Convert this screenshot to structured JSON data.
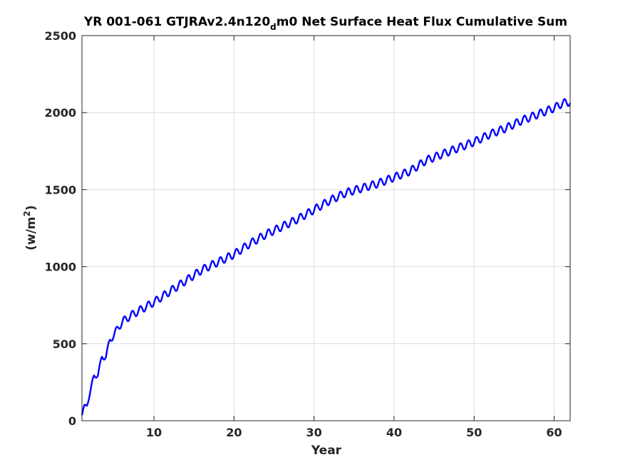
{
  "chart_data": {
    "type": "line",
    "title_main": "YR 001-061 GTJRAv2.4n120",
    "title_subscript": "d",
    "title_rest": "m0 Net Surface Heat Flux  Cumulative Sum",
    "xlabel": "Year",
    "ylabel_base": "(w/m",
    "ylabel_sup": "2",
    "ylabel_end": ")",
    "xlim": [
      1,
      62
    ],
    "ylim": [
      0,
      2500
    ],
    "xticks": [
      10,
      20,
      30,
      40,
      50,
      60
    ],
    "yticks": [
      0,
      500,
      1000,
      1500,
      2000,
      2500
    ],
    "grid": true,
    "line_color": "#0000ff",
    "seasonal_cycle": "annual oscillation, amplitude ~25 w/m2 after year 6",
    "series": [
      {
        "x": [
          1.0,
          1.3,
          1.6,
          2.0,
          2.5,
          3.0,
          3.5,
          4.0,
          4.5,
          5.0,
          6,
          7,
          8,
          9,
          10,
          12,
          14,
          16,
          18,
          20,
          22,
          24,
          26,
          28,
          30,
          32,
          34,
          36,
          38,
          40,
          42,
          44,
          46,
          48,
          50,
          52,
          54,
          56,
          58,
          60,
          61,
          62
        ],
        "values": [
          40,
          90,
          100,
          180,
          290,
          300,
          410,
          420,
          520,
          560,
          640,
          680,
          710,
          740,
          770,
          840,
          910,
          980,
          1030,
          1080,
          1150,
          1210,
          1260,
          1310,
          1370,
          1430,
          1480,
          1510,
          1540,
          1580,
          1620,
          1690,
          1730,
          1770,
          1810,
          1860,
          1900,
          1950,
          1990,
          2030,
          2060,
          2070
        ]
      }
    ]
  }
}
